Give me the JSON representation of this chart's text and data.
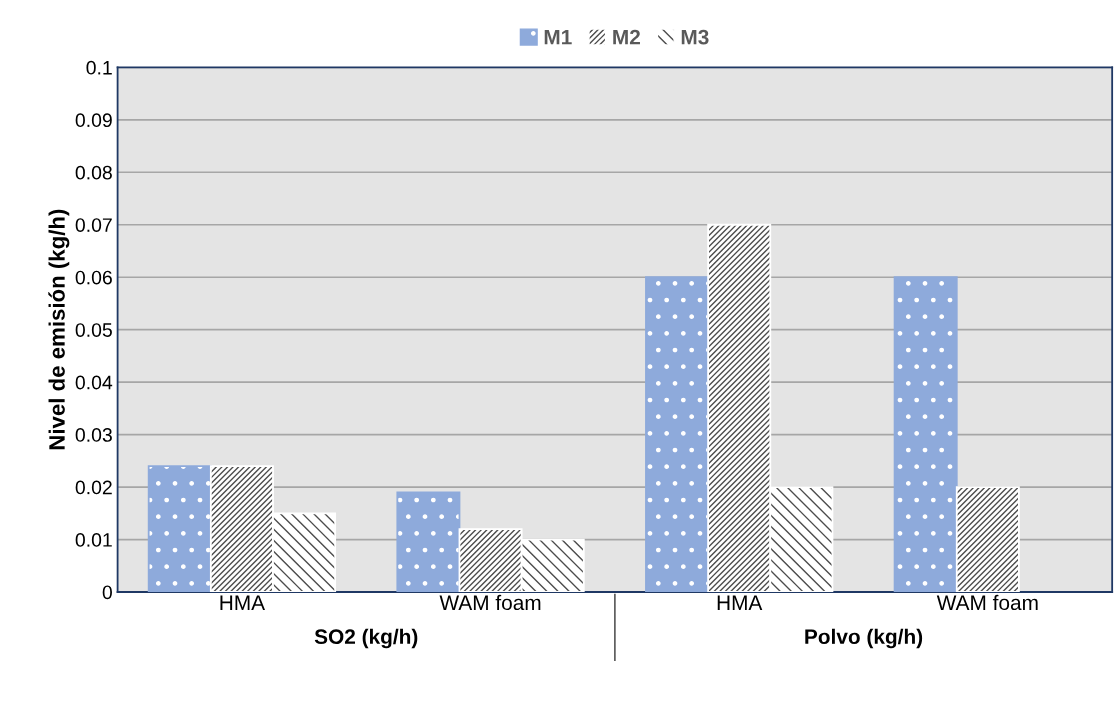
{
  "chart_data": {
    "type": "bar",
    "ylabel": "Nivel de emisión (kg/h)",
    "categories": [
      "HMA",
      "WAM foam",
      "HMA",
      "WAM foam"
    ],
    "annotations": [
      "SO2 (kg/h)",
      "Polvo (kg/h)"
    ],
    "series": [
      {
        "name": "M1",
        "color": "#8eaadb",
        "values": [
          0.024,
          0.019,
          0.06,
          0.06
        ]
      },
      {
        "name": "M2",
        "color": "#ffffff",
        "values": [
          0.024,
          0.012,
          0.07,
          0.02
        ]
      },
      {
        "name": "M3",
        "color": "#ffffff",
        "values": [
          0.015,
          0.01,
          0.02,
          null
        ]
      }
    ],
    "ylim": [
      0,
      0.1
    ],
    "yticks": [
      0,
      0.01,
      0.02,
      0.03,
      0.04,
      0.05,
      0.06,
      0.07,
      0.08,
      0.09,
      0.1
    ],
    "grid": "y",
    "legend": "top"
  }
}
